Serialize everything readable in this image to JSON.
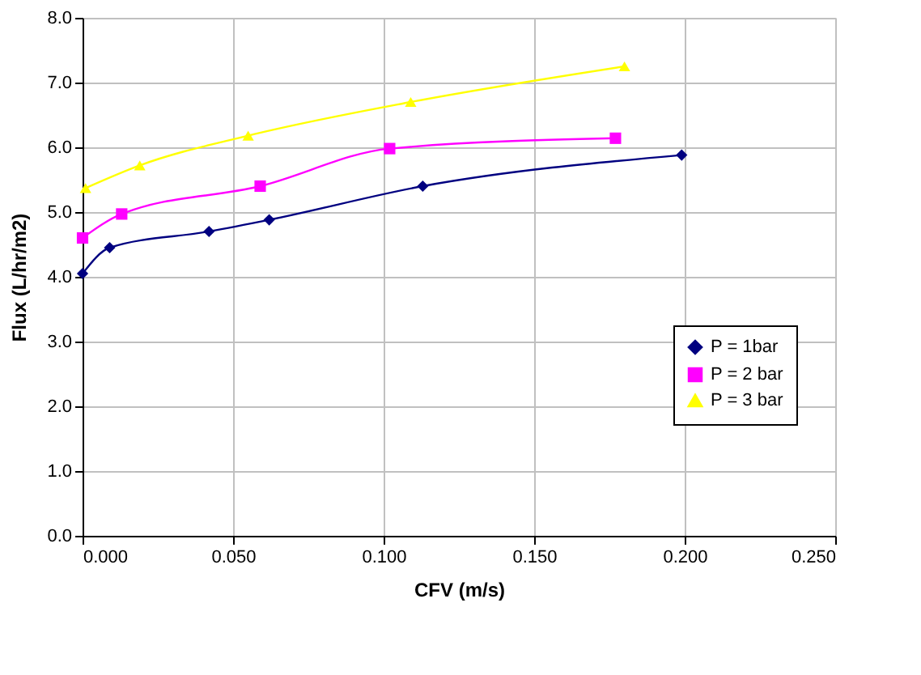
{
  "chart_data": {
    "type": "line",
    "xlabel": "CFV (m/s)",
    "ylabel": "Flux (L/hr/m2)",
    "xlim": [
      0,
      0.25
    ],
    "xticks": [
      {
        "value": 0,
        "label": "0.000"
      },
      {
        "value": 0.05,
        "label": "0.050"
      },
      {
        "value": 0.1,
        "label": "0.100"
      },
      {
        "value": 0.15,
        "label": "0.150"
      },
      {
        "value": 0.2,
        "label": "0.200"
      },
      {
        "value": 0.25,
        "label": "0.250"
      }
    ],
    "ylim": [
      0,
      8
    ],
    "yticks": [
      {
        "value": 0,
        "label": "0.0"
      },
      {
        "value": 1,
        "label": "1.0"
      },
      {
        "value": 2,
        "label": "2.0"
      },
      {
        "value": 3,
        "label": "3.0"
      },
      {
        "value": 4,
        "label": "4.0"
      },
      {
        "value": 5,
        "label": "5.0"
      },
      {
        "value": 6,
        "label": "6.0"
      },
      {
        "value": 7,
        "label": "7.0"
      },
      {
        "value": 8,
        "label": "8.0"
      }
    ],
    "grid": true,
    "legend": "right",
    "series": [
      {
        "name": "P = 1bar",
        "color": "#000080",
        "marker": "diamond",
        "x": [
          0,
          0.009,
          0.042,
          0.062,
          0.113,
          0.199
        ],
        "values": [
          4.05,
          4.45,
          4.7,
          4.88,
          5.4,
          5.88
        ]
      },
      {
        "name": "P = 2 bar",
        "color": "#ff00ff",
        "marker": "square",
        "x": [
          0,
          0.013,
          0.059,
          0.102,
          0.177
        ],
        "values": [
          4.6,
          4.97,
          5.4,
          5.98,
          6.14
        ]
      },
      {
        "name": "P = 3 bar",
        "color": "#ffff00",
        "marker": "triangle",
        "x": [
          0.001,
          0.019,
          0.055,
          0.109,
          0.18
        ],
        "values": [
          5.37,
          5.72,
          6.18,
          6.7,
          7.25
        ]
      }
    ]
  }
}
